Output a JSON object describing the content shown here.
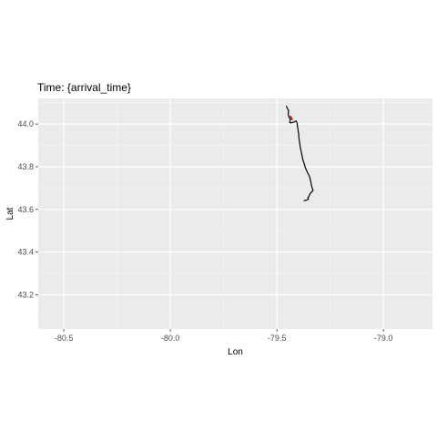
{
  "chart_data": {
    "type": "line",
    "title": "Time: {arrival_time}",
    "xlabel": "Lon",
    "ylabel": "Lat",
    "xlim": [
      -80.62,
      -78.77
    ],
    "ylim": [
      43.04,
      44.12
    ],
    "x_ticks": [
      -80.5,
      -80.0,
      -79.5,
      -79.0
    ],
    "x_tick_labels": [
      "-80.5",
      "-80.0",
      "-79.5",
      "-79.0"
    ],
    "y_ticks": [
      43.2,
      43.4,
      43.6,
      43.8,
      44.0
    ],
    "y_tick_labels": [
      "43.2",
      "43.4",
      "43.6",
      "43.8",
      "44.0"
    ],
    "grid": true,
    "series": [
      {
        "color": "#000000",
        "x": [
          -79.455,
          -79.45,
          -79.445,
          -79.447,
          -79.443,
          -79.437,
          -79.44,
          -79.435,
          -79.418,
          -79.41,
          -79.405,
          -79.402,
          -79.398,
          -79.396,
          -79.393,
          -79.39,
          -79.384,
          -79.378,
          -79.372,
          -79.368,
          -79.362,
          -79.355,
          -79.347,
          -79.341,
          -79.337,
          -79.334,
          -79.33,
          -79.336,
          -79.344,
          -79.35,
          -79.355,
          -79.352,
          -79.358,
          -79.365,
          -79.372
        ],
        "y": [
          44.083,
          44.072,
          44.063,
          44.047,
          44.032,
          44.022,
          44.008,
          44.005,
          44.01,
          44.015,
          44.003,
          43.98,
          43.955,
          43.93,
          43.91,
          43.89,
          43.862,
          43.832,
          43.815,
          43.8,
          43.785,
          43.77,
          43.755,
          43.73,
          43.71,
          43.7,
          43.69,
          43.682,
          43.675,
          43.66,
          43.655,
          43.648,
          43.645,
          43.643,
          43.641
        ]
      },
      {
        "color": "#cc0000",
        "x": [
          -79.436,
          -79.432,
          -79.429
        ],
        "y": [
          44.036,
          44.028,
          44.021
        ]
      }
    ]
  }
}
